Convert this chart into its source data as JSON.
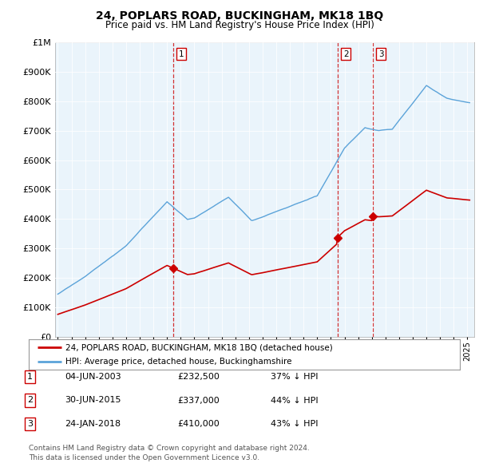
{
  "title": "24, POPLARS ROAD, BUCKINGHAM, MK18 1BQ",
  "subtitle": "Price paid vs. HM Land Registry's House Price Index (HPI)",
  "ytick_values": [
    0,
    100000,
    200000,
    300000,
    400000,
    500000,
    600000,
    700000,
    800000,
    900000,
    1000000
  ],
  "ylim": [
    0,
    1000000
  ],
  "xlim_start": 1994.8,
  "xlim_end": 2025.5,
  "hpi_color": "#5ba3d9",
  "hpi_fill_color": "#d6eaf8",
  "price_color": "#cc0000",
  "vline_color": "#cc0000",
  "grid_color": "#cccccc",
  "chart_bg": "#eaf4fb",
  "sale_points": [
    {
      "year": 2003.45,
      "price": 232500,
      "label": "1"
    },
    {
      "year": 2015.5,
      "price": 337000,
      "label": "2"
    },
    {
      "year": 2018.07,
      "price": 410000,
      "label": "3"
    }
  ],
  "legend_price_label": "24, POPLARS ROAD, BUCKINGHAM, MK18 1BQ (detached house)",
  "legend_hpi_label": "HPI: Average price, detached house, Buckinghamshire",
  "table_rows": [
    {
      "num": "1",
      "date": "04-JUN-2003",
      "price": "£232,500",
      "change": "37% ↓ HPI"
    },
    {
      "num": "2",
      "date": "30-JUN-2015",
      "price": "£337,000",
      "change": "44% ↓ HPI"
    },
    {
      "num": "3",
      "date": "24-JAN-2018",
      "price": "£410,000",
      "change": "43% ↓ HPI"
    }
  ],
  "footer": "Contains HM Land Registry data © Crown copyright and database right 2024.\nThis data is licensed under the Open Government Licence v3.0.",
  "background_color": "#ffffff"
}
